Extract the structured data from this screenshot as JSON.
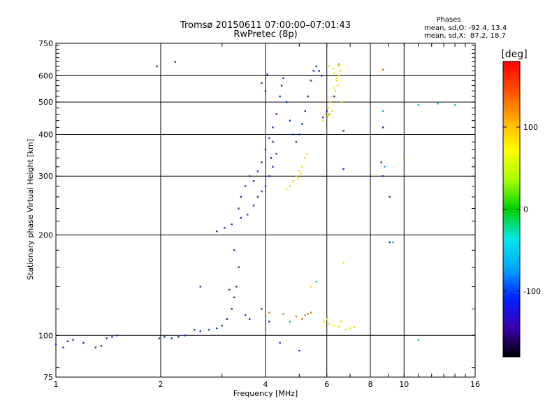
{
  "chart_data": {
    "type": "scatter",
    "title": "Tromsø 20150611 07:00:00–07:01:43",
    "subtitle": "RwPretec (8p)",
    "info": {
      "heading": "Phases",
      "line1": "mean, sd,O: -92.4, 13.4",
      "line2": "mean, sd,X:  87.2, 18.7"
    },
    "xlabel": "Frequency [MHz]",
    "ylabel": "Stationary phase Virtual Height [km]",
    "xscale": "log",
    "yscale": "log",
    "xlim": [
      1,
      16
    ],
    "ylim": [
      75,
      750
    ],
    "xticks": [
      1,
      2,
      4,
      6,
      8,
      10,
      16
    ],
    "yticks": [
      75,
      100,
      200,
      300,
      400,
      500,
      600,
      750
    ],
    "grid": true,
    "colorbar": {
      "label": "[deg]",
      "range": [
        -180,
        180
      ],
      "ticks": [
        100,
        0,
        -100
      ],
      "colors": [
        "#000000",
        "#3a00b0",
        "#0022ff",
        "#00a8ff",
        "#00e8e8",
        "#00d000",
        "#a8ff00",
        "#ffff00",
        "#ffb000",
        "#ff5000",
        "#ff0000"
      ]
    },
    "series": [
      {
        "polarity": "O",
        "color": "#0a32e6",
        "points": [
          [
            1.0,
            94
          ],
          [
            1.05,
            92
          ],
          [
            1.08,
            96
          ],
          [
            1.12,
            97
          ],
          [
            1.2,
            95
          ],
          [
            1.3,
            92
          ],
          [
            1.35,
            93
          ],
          [
            1.4,
            98
          ],
          [
            1.45,
            99
          ],
          [
            1.5,
            100
          ],
          [
            1.98,
            98
          ],
          [
            2.05,
            99
          ],
          [
            2.15,
            98
          ],
          [
            2.25,
            99
          ],
          [
            2.35,
            100
          ],
          [
            2.5,
            104
          ],
          [
            2.6,
            103
          ],
          [
            2.75,
            104
          ],
          [
            2.9,
            105
          ],
          [
            3.0,
            107
          ],
          [
            3.1,
            112
          ],
          [
            3.2,
            120
          ],
          [
            3.25,
            130
          ],
          [
            3.3,
            140
          ],
          [
            3.35,
            160
          ],
          [
            3.15,
            137
          ],
          [
            3.5,
            115
          ],
          [
            3.6,
            112
          ],
          [
            4.1,
            110
          ],
          [
            4.4,
            95
          ],
          [
            2.9,
            205
          ],
          [
            3.05,
            210
          ],
          [
            3.2,
            215
          ],
          [
            3.35,
            240
          ],
          [
            3.4,
            260
          ],
          [
            3.5,
            280
          ],
          [
            3.6,
            300
          ],
          [
            3.7,
            290
          ],
          [
            3.8,
            310
          ],
          [
            3.9,
            330
          ],
          [
            4.0,
            360
          ],
          [
            4.1,
            390
          ],
          [
            4.2,
            420
          ],
          [
            4.3,
            460
          ],
          [
            4.4,
            520
          ],
          [
            4.45,
            560
          ],
          [
            4.5,
            590
          ],
          [
            4.6,
            500
          ],
          [
            4.7,
            440
          ],
          [
            4.8,
            400
          ],
          [
            4.9,
            380
          ],
          [
            5.0,
            400
          ],
          [
            5.1,
            430
          ],
          [
            5.2,
            470
          ],
          [
            5.3,
            520
          ],
          [
            5.4,
            580
          ],
          [
            5.5,
            620
          ],
          [
            5.6,
            640
          ],
          [
            5.7,
            620
          ],
          [
            5.8,
            600
          ],
          [
            3.4,
            225
          ],
          [
            3.55,
            230
          ],
          [
            3.7,
            245
          ],
          [
            3.8,
            260
          ],
          [
            3.9,
            270
          ],
          [
            4.0,
            280
          ],
          [
            4.1,
            300
          ],
          [
            4.2,
            320
          ],
          [
            4.3,
            350
          ],
          [
            4.15,
            340
          ],
          [
            4.2,
            380
          ],
          [
            4.05,
            605
          ],
          [
            1.95,
            640
          ],
          [
            2.2,
            660
          ],
          [
            4.0,
            540
          ],
          [
            3.9,
            570
          ],
          [
            3.25,
            180
          ],
          [
            2.6,
            140
          ],
          [
            6.7,
            410
          ],
          [
            6.7,
            315
          ],
          [
            8.7,
            420
          ],
          [
            9.1,
            260
          ],
          [
            8.6,
            330
          ],
          [
            8.7,
            300
          ],
          [
            9.1,
            190
          ],
          [
            5.0,
            90
          ],
          [
            3.9,
            120
          ],
          [
            6.3,
            520
          ],
          [
            5.85,
            450
          ],
          [
            6.0,
            470
          ]
        ]
      },
      {
        "polarity": "X",
        "color": "#f0e000",
        "points": [
          [
            4.6,
            275
          ],
          [
            4.7,
            280
          ],
          [
            4.8,
            290
          ],
          [
            4.9,
            300
          ],
          [
            5.0,
            310
          ],
          [
            5.1,
            320
          ],
          [
            5.2,
            340
          ],
          [
            5.25,
            350
          ],
          [
            4.95,
            295
          ],
          [
            5.05,
            305
          ],
          [
            5.85,
            440
          ],
          [
            5.95,
            460
          ],
          [
            6.05,
            480
          ],
          [
            6.15,
            500
          ],
          [
            6.2,
            520
          ],
          [
            6.3,
            550
          ],
          [
            6.4,
            580
          ],
          [
            6.5,
            600
          ],
          [
            6.55,
            620
          ],
          [
            6.45,
            560
          ],
          [
            6.1,
            640
          ],
          [
            6.25,
            630
          ],
          [
            6.35,
            540
          ],
          [
            6.0,
            450
          ],
          [
            6.2,
            470
          ],
          [
            6.4,
            590
          ],
          [
            6.6,
            500
          ],
          [
            6.05,
            455
          ],
          [
            6.3,
            610
          ],
          [
            6.5,
            640
          ],
          [
            5.9,
            110
          ],
          [
            6.1,
            108
          ],
          [
            6.3,
            107
          ],
          [
            6.5,
            106
          ],
          [
            6.8,
            104
          ],
          [
            7.0,
            105
          ],
          [
            7.2,
            106
          ],
          [
            6.0,
            112
          ],
          [
            6.6,
            110
          ],
          [
            5.6,
            145
          ],
          [
            6.7,
            165
          ],
          [
            5.4,
            140
          ]
        ]
      },
      {
        "polarity": "other",
        "color": "#d08020",
        "points": [
          [
            5.2,
            115
          ],
          [
            5.3,
            116
          ],
          [
            5.4,
            117
          ],
          [
            5.1,
            112
          ],
          [
            6.5,
            650
          ],
          [
            8.7,
            625
          ],
          [
            10.0,
            340
          ],
          [
            6.0,
            450
          ],
          [
            6.1,
            460
          ],
          [
            4.1,
            117
          ],
          [
            4.5,
            116
          ],
          [
            4.9,
            114
          ]
        ]
      },
      {
        "polarity": "other",
        "color": "#00b0e8",
        "points": [
          [
            8.7,
            470
          ],
          [
            8.8,
            320
          ],
          [
            11.0,
            490
          ],
          [
            12.5,
            495
          ],
          [
            14.0,
            490
          ],
          [
            11.0,
            97
          ],
          [
            9.3,
            190
          ],
          [
            5.6,
            145
          ],
          [
            4.7,
            110
          ]
        ]
      }
    ]
  }
}
